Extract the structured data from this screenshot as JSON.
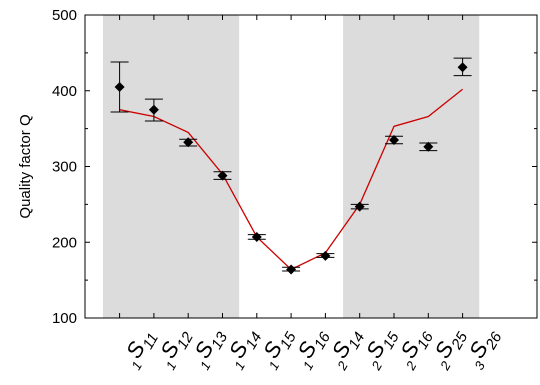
{
  "chart_data": {
    "type": "scatter",
    "title": "",
    "xlabel": "",
    "ylabel": "Quality factor Q",
    "ylim": [
      100,
      500
    ],
    "yticks": [
      "100",
      "200",
      "300",
      "400",
      "500"
    ],
    "grid": false,
    "categories": [
      {
        "pre": "1",
        "main": "S",
        "sub": "11"
      },
      {
        "pre": "1",
        "main": "S",
        "sub": "12"
      },
      {
        "pre": "1",
        "main": "S",
        "sub": "13"
      },
      {
        "pre": "1",
        "main": "S",
        "sub": "14"
      },
      {
        "pre": "1",
        "main": "S",
        "sub": "15"
      },
      {
        "pre": "1",
        "main": "S",
        "sub": "16"
      },
      {
        "pre": "2",
        "main": "S",
        "sub": "14"
      },
      {
        "pre": "2",
        "main": "S",
        "sub": "15"
      },
      {
        "pre": "2",
        "main": "S",
        "sub": "16"
      },
      {
        "pre": "2",
        "main": "S",
        "sub": "25"
      },
      {
        "pre": "3",
        "main": "S",
        "sub": "26"
      }
    ],
    "series": [
      {
        "kind": "measured",
        "marker": "diamond",
        "color": "#000000",
        "values": [
          405,
          375,
          332,
          288,
          207,
          164,
          182,
          247,
          335,
          326,
          431
        ],
        "error_low": [
          372,
          360,
          327,
          283,
          204,
          162,
          180,
          244,
          330,
          321,
          420
        ],
        "error_high": [
          438,
          389,
          336,
          293,
          210,
          167,
          185,
          250,
          340,
          331,
          443
        ]
      },
      {
        "kind": "model",
        "line": true,
        "color": "#cc0000",
        "values": [
          375,
          366,
          345,
          290,
          207,
          164,
          186,
          250,
          353,
          366,
          402
        ]
      }
    ],
    "shaded_categories": [
      [
        0,
        3
      ],
      [
        7,
        10
      ]
    ],
    "shade_color": "#dcdcdc"
  }
}
